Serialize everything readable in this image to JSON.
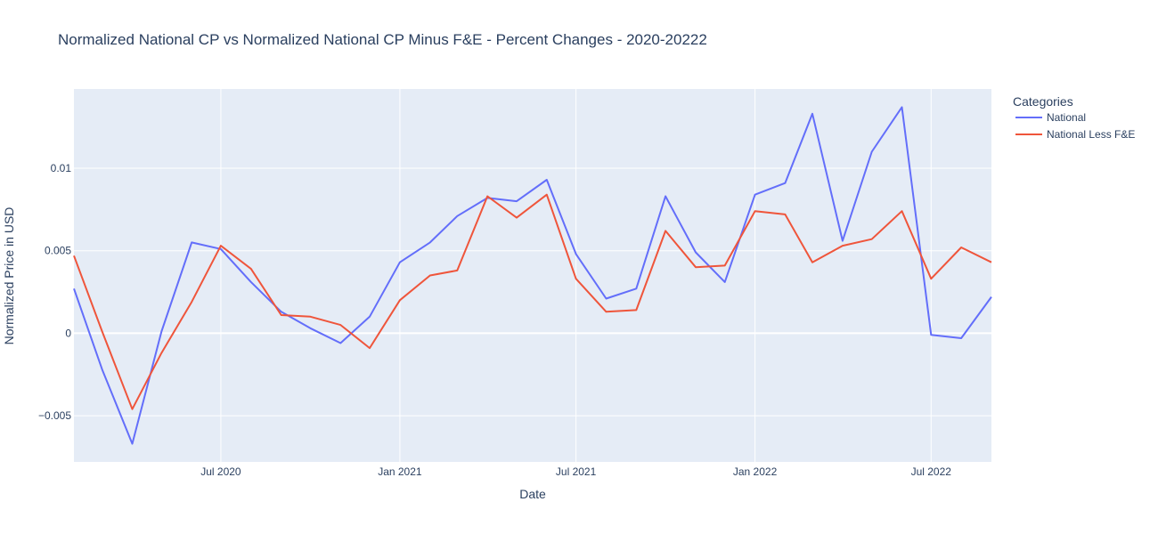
{
  "colors": {
    "plot_background": "#E5ECF6",
    "grid": "#FFFFFF",
    "text": "#2A3F5F"
  },
  "chart_data": {
    "type": "line",
    "title": "Normalized National CP vs Normalized National CP Minus F&E - Percent Changes - 2020-20222",
    "xlabel": "Date",
    "ylabel": "Normalized Price in USD",
    "xlim": [
      "2020-02-01",
      "2022-09-01"
    ],
    "ylim": [
      -0.0078,
      0.0148
    ],
    "x_ticks": [
      {
        "date": "2020-07-01",
        "label": "Jul 2020"
      },
      {
        "date": "2021-01-01",
        "label": "Jan 2021"
      },
      {
        "date": "2021-07-01",
        "label": "Jul 2021"
      },
      {
        "date": "2022-01-01",
        "label": "Jan 2022"
      },
      {
        "date": "2022-07-01",
        "label": "Jul 2022"
      }
    ],
    "y_ticks": [
      {
        "value": -0.005,
        "label": "−0.005"
      },
      {
        "value": 0,
        "label": "0"
      },
      {
        "value": 0.005,
        "label": "0.005"
      },
      {
        "value": 0.01,
        "label": "0.01"
      }
    ],
    "grid": true,
    "legend": {
      "title": "Categories",
      "position": "right"
    },
    "x": [
      "2020-02-01",
      "2020-03-01",
      "2020-04-01",
      "2020-05-01",
      "2020-06-01",
      "2020-07-01",
      "2020-08-01",
      "2020-09-01",
      "2020-10-01",
      "2020-11-01",
      "2020-12-01",
      "2021-01-01",
      "2021-02-01",
      "2021-03-01",
      "2021-04-01",
      "2021-05-01",
      "2021-06-01",
      "2021-07-01",
      "2021-08-01",
      "2021-09-01",
      "2021-10-01",
      "2021-11-01",
      "2021-12-01",
      "2022-01-01",
      "2022-02-01",
      "2022-03-01",
      "2022-04-01",
      "2022-05-01",
      "2022-06-01",
      "2022-07-01",
      "2022-08-01",
      "2022-09-01"
    ],
    "series": [
      {
        "name": "National",
        "color": "#636EFA",
        "values": [
          0.0027,
          -0.0022,
          -0.0067,
          0.0001,
          0.0055,
          0.0051,
          0.0031,
          0.0013,
          0.0003,
          -0.0006,
          0.001,
          0.0043,
          0.0055,
          0.0071,
          0.0082,
          0.008,
          0.0093,
          0.0048,
          0.0021,
          0.0027,
          0.0083,
          0.0049,
          0.0031,
          0.0084,
          0.0091,
          0.0133,
          0.0056,
          0.011,
          0.0137,
          -0.0001,
          -0.0003,
          0.0022
        ]
      },
      {
        "name": "National Less F&E",
        "color": "#EF553B",
        "values": [
          0.0047,
          0.0001,
          -0.0046,
          -0.0012,
          0.0019,
          0.0053,
          0.0039,
          0.0011,
          0.001,
          0.0005,
          -0.0009,
          0.002,
          0.0035,
          0.0038,
          0.0083,
          0.007,
          0.0084,
          0.0033,
          0.0013,
          0.0014,
          0.0062,
          0.004,
          0.0041,
          0.0074,
          0.0072,
          0.0043,
          0.0053,
          0.0057,
          0.0074,
          0.0033,
          0.0052,
          0.0043
        ]
      }
    ]
  }
}
